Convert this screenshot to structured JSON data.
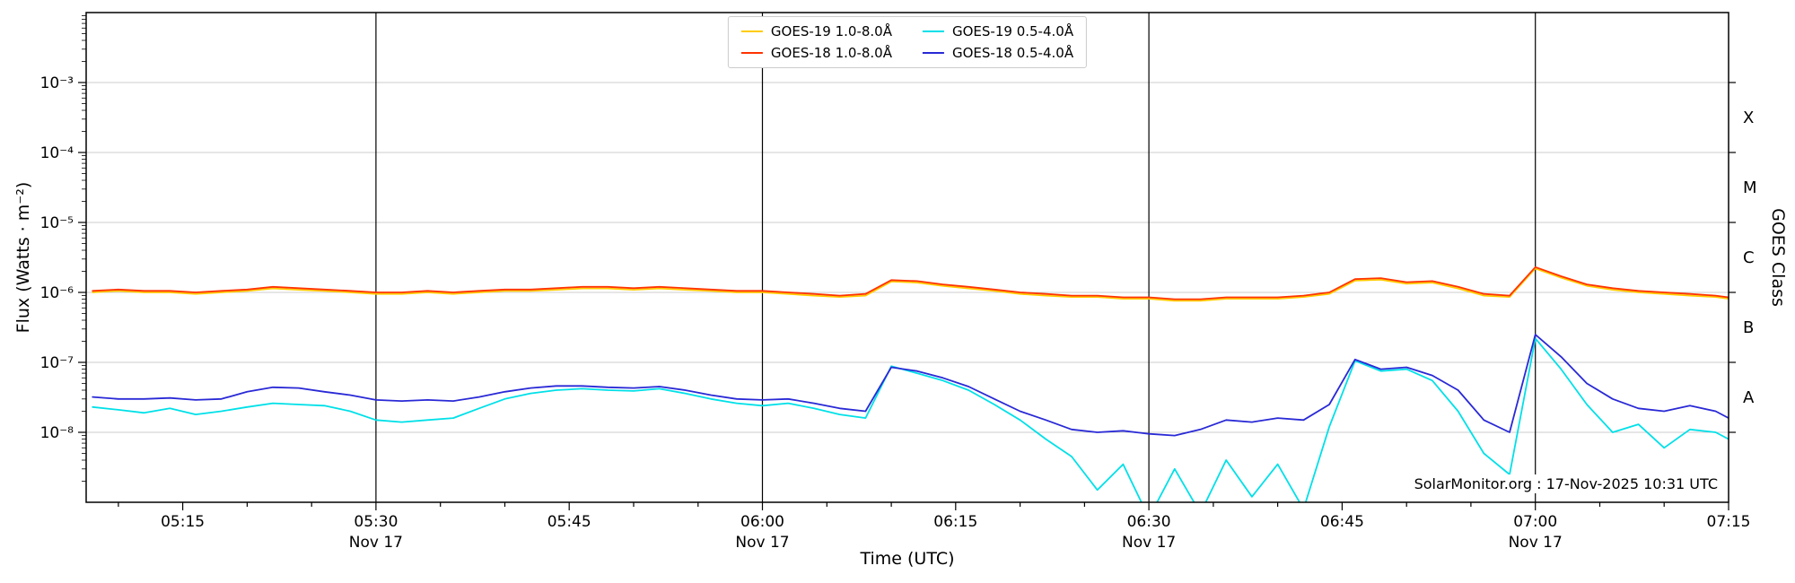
{
  "chart_data": {
    "type": "line",
    "title": "",
    "xlabel": "Time (UTC)",
    "ylabel": "Flux (Watts · m⁻²)",
    "ylabel_right": "GOES Class",
    "annotation": "SolarMonitor.org : 17-Nov-2025 10:31 UTC",
    "legend_position": "upper center",
    "grid": "horizontal decade gridlines on",
    "xlim_hours": [
      5.125,
      7.25
    ],
    "ylim": [
      1e-09,
      0.01
    ],
    "x_ticks": {
      "hours": [
        5.25,
        5.5,
        5.75,
        6.0,
        6.25,
        6.5,
        6.75,
        7.0,
        7.25
      ],
      "labels": [
        "05:15",
        "05:30",
        "05:45",
        "06:00",
        "06:15",
        "06:30",
        "06:45",
        "07:00",
        "07:15"
      ]
    },
    "date_ticks": {
      "hours": [
        5.5,
        6.0,
        6.5,
        7.0
      ],
      "label": "Nov 17"
    },
    "vlines_hours": [
      5.5,
      6.0,
      6.5,
      7.0
    ],
    "y_ticks": {
      "values": [
        0.001,
        0.0001,
        1e-05,
        1e-06,
        1e-07,
        1e-08
      ],
      "labels": [
        "10⁻³",
        "10⁻⁴",
        "10⁻⁵",
        "10⁻⁶",
        "10⁻⁷",
        "10⁻⁸"
      ]
    },
    "goes_classes": [
      {
        "label": "X",
        "flux": 0.000316
      },
      {
        "label": "M",
        "flux": 3.16e-05
      },
      {
        "label": "C",
        "flux": 3.16e-06
      },
      {
        "label": "B",
        "flux": 3.16e-07
      },
      {
        "label": "A",
        "flux": 3.16e-08
      }
    ],
    "colors": {
      "background": "#ffffff",
      "axis": "#000000",
      "grid": "#cccccc"
    },
    "x_minutes": [
      308,
      310,
      312,
      314,
      316,
      318,
      320,
      322,
      324,
      326,
      328,
      330,
      332,
      334,
      336,
      338,
      340,
      342,
      344,
      346,
      348,
      350,
      352,
      354,
      356,
      358,
      360,
      362,
      364,
      366,
      368,
      370,
      372,
      374,
      376,
      378,
      380,
      382,
      384,
      386,
      388,
      390,
      392,
      394,
      396,
      398,
      400,
      402,
      404,
      406,
      408,
      410,
      412,
      414,
      416,
      418,
      420,
      422,
      424,
      426,
      428,
      430,
      432,
      434,
      435
    ],
    "series": [
      {
        "name": "GOES-19 1.0-8.0Å",
        "color": "#ffcc00",
        "values": [
          1e-06,
          1.05e-06,
          1e-06,
          1e-06,
          9.5e-07,
          1e-06,
          1.05e-06,
          1.14e-06,
          1.09e-06,
          1.05e-06,
          1e-06,
          9.5e-07,
          9.5e-07,
          1e-06,
          9.5e-07,
          1e-06,
          1.05e-06,
          1.05e-06,
          1.09e-06,
          1.14e-06,
          1.14e-06,
          1.09e-06,
          1.14e-06,
          1.09e-06,
          1.05e-06,
          1e-06,
          1e-06,
          9.5e-07,
          9e-07,
          8.6e-07,
          9e-07,
          1.43e-06,
          1.38e-06,
          1.24e-06,
          1.14e-06,
          1.05e-06,
          9.5e-07,
          9e-07,
          8.6e-07,
          8.6e-07,
          8.1e-07,
          8.1e-07,
          7.6e-07,
          7.6e-07,
          8.1e-07,
          8.1e-07,
          8.1e-07,
          8.6e-07,
          9.5e-07,
          1.47e-06,
          1.52e-06,
          1.33e-06,
          1.38e-06,
          1.14e-06,
          9e-07,
          8.6e-07,
          2.19e-06,
          1.62e-06,
          1.24e-06,
          1.09e-06,
          1e-06,
          9.5e-07,
          9e-07,
          8.6e-07,
          8.1e-07
        ]
      },
      {
        "name": "GOES-18 1.0-8.0Å",
        "color": "#ff3300",
        "values": [
          1.05e-06,
          1.1e-06,
          1.05e-06,
          1.05e-06,
          1e-06,
          1.05e-06,
          1.1e-06,
          1.2e-06,
          1.15e-06,
          1.1e-06,
          1.05e-06,
          1e-06,
          1e-06,
          1.05e-06,
          1e-06,
          1.05e-06,
          1.1e-06,
          1.1e-06,
          1.15e-06,
          1.2e-06,
          1.2e-06,
          1.15e-06,
          1.2e-06,
          1.15e-06,
          1.1e-06,
          1.05e-06,
          1.05e-06,
          1e-06,
          9.5e-07,
          9e-07,
          9.5e-07,
          1.5e-06,
          1.45e-06,
          1.3e-06,
          1.2e-06,
          1.1e-06,
          1e-06,
          9.5e-07,
          9e-07,
          9e-07,
          8.5e-07,
          8.5e-07,
          8e-07,
          8e-07,
          8.5e-07,
          8.5e-07,
          8.5e-07,
          9e-07,
          1e-06,
          1.55e-06,
          1.6e-06,
          1.4e-06,
          1.45e-06,
          1.2e-06,
          9.5e-07,
          9e-07,
          2.3e-06,
          1.7e-06,
          1.3e-06,
          1.15e-06,
          1.05e-06,
          1e-06,
          9.5e-07,
          9e-07,
          8.5e-07
        ]
      },
      {
        "name": "GOES-19 0.5-4.0Å",
        "color": "#00e0e8",
        "values": [
          2.3e-08,
          2.1e-08,
          1.9e-08,
          2.2e-08,
          1.8e-08,
          2e-08,
          2.3e-08,
          2.6e-08,
          2.5e-08,
          2.4e-08,
          2e-08,
          1.5e-08,
          1.4e-08,
          1.5e-08,
          1.6e-08,
          2.2e-08,
          3e-08,
          3.6e-08,
          4e-08,
          4.2e-08,
          4e-08,
          3.9e-08,
          4.2e-08,
          3.6e-08,
          3e-08,
          2.6e-08,
          2.4e-08,
          2.6e-08,
          2.2e-08,
          1.8e-08,
          1.6e-08,
          8.8e-08,
          7e-08,
          5.5e-08,
          4e-08,
          2.5e-08,
          1.5e-08,
          8e-09,
          4.5e-09,
          1.5e-09,
          3.5e-09,
          6e-10,
          3e-09,
          7e-10,
          4e-09,
          1.2e-09,
          3.5e-09,
          8e-10,
          1.2e-08,
          1.05e-07,
          7.5e-08,
          8e-08,
          5.5e-08,
          2e-08,
          5e-09,
          2.5e-09,
          2.2e-07,
          8e-08,
          2.5e-08,
          1e-08,
          1.3e-08,
          6e-09,
          1.1e-08,
          1e-08,
          8e-09
        ]
      },
      {
        "name": "GOES-18 0.5-4.0Å",
        "color": "#2929d6",
        "values": [
          3.2e-08,
          3e-08,
          3e-08,
          3.1e-08,
          2.9e-08,
          3e-08,
          3.8e-08,
          4.4e-08,
          4.3e-08,
          3.8e-08,
          3.4e-08,
          2.9e-08,
          2.8e-08,
          2.9e-08,
          2.8e-08,
          3.2e-08,
          3.8e-08,
          4.3e-08,
          4.6e-08,
          4.6e-08,
          4.4e-08,
          4.3e-08,
          4.5e-08,
          4e-08,
          3.4e-08,
          3e-08,
          2.9e-08,
          3e-08,
          2.6e-08,
          2.2e-08,
          2e-08,
          8.5e-08,
          7.5e-08,
          6e-08,
          4.5e-08,
          3e-08,
          2e-08,
          1.5e-08,
          1.1e-08,
          1e-08,
          1.05e-08,
          9.5e-09,
          9e-09,
          1.1e-08,
          1.5e-08,
          1.4e-08,
          1.6e-08,
          1.5e-08,
          2.5e-08,
          1.1e-07,
          8e-08,
          8.5e-08,
          6.5e-08,
          4e-08,
          1.5e-08,
          1e-08,
          2.5e-07,
          1.2e-07,
          5e-08,
          3e-08,
          2.2e-08,
          2e-08,
          2.4e-08,
          2e-08,
          1.6e-08
        ]
      }
    ]
  }
}
